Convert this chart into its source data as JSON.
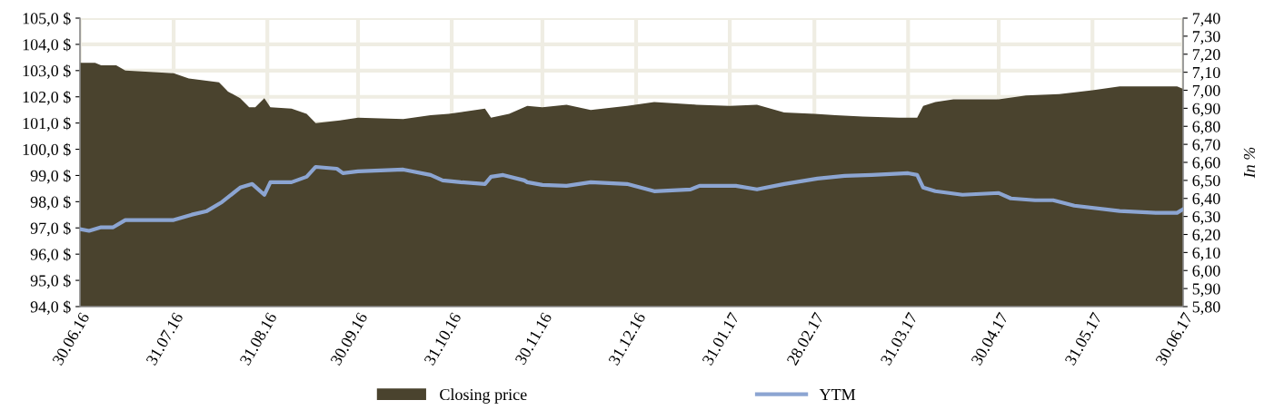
{
  "chart_data": {
    "type": "area",
    "y2label": "In %",
    "legend": "bottom",
    "grid": true,
    "xlim": [
      "2016-06-30",
      "2017-06-30"
    ],
    "xticks": [
      {
        "value": "2016-06-30",
        "label": "30.06.16"
      },
      {
        "value": "2016-07-31",
        "label": "31.07.16"
      },
      {
        "value": "2016-08-31",
        "label": "31.08.16"
      },
      {
        "value": "2016-09-30",
        "label": "30.09.16"
      },
      {
        "value": "2016-10-31",
        "label": "31.10.16"
      },
      {
        "value": "2016-11-30",
        "label": "30.11.16"
      },
      {
        "value": "2016-12-31",
        "label": "31.12.16"
      },
      {
        "value": "2017-01-31",
        "label": "31.01.17"
      },
      {
        "value": "2017-02-28",
        "label": "28.02.17"
      },
      {
        "value": "2017-03-31",
        "label": "31.03.17"
      },
      {
        "value": "2017-04-30",
        "label": "30.04.17"
      },
      {
        "value": "2017-05-31",
        "label": "31.05.17"
      },
      {
        "value": "2017-06-30",
        "label": "30.06.17"
      }
    ],
    "ylim": [
      94,
      105
    ],
    "yticks": [
      {
        "value": 94,
        "label": "94,0 $"
      },
      {
        "value": 95,
        "label": "95,0 $"
      },
      {
        "value": 96,
        "label": "96,0 $"
      },
      {
        "value": 97,
        "label": "97,0 $"
      },
      {
        "value": 98,
        "label": "98,0 $"
      },
      {
        "value": 99,
        "label": "99,0 $"
      },
      {
        "value": 100,
        "label": "100,0 $"
      },
      {
        "value": 101,
        "label": "101,0 $"
      },
      {
        "value": 102,
        "label": "102,0 $"
      },
      {
        "value": 103,
        "label": "103,0 $"
      },
      {
        "value": 104,
        "label": "104,0 $"
      },
      {
        "value": 105,
        "label": "105,0 $"
      }
    ],
    "y2lim": [
      5.8,
      7.4
    ],
    "y2ticks": [
      {
        "value": 5.8,
        "label": "5,80"
      },
      {
        "value": 5.9,
        "label": "5,90"
      },
      {
        "value": 6.0,
        "label": "6,00"
      },
      {
        "value": 6.1,
        "label": "6,10"
      },
      {
        "value": 6.2,
        "label": "6,20"
      },
      {
        "value": 6.3,
        "label": "6,30"
      },
      {
        "value": 6.4,
        "label": "6,40"
      },
      {
        "value": 6.5,
        "label": "6,50"
      },
      {
        "value": 6.6,
        "label": "6,60"
      },
      {
        "value": 6.7,
        "label": "6,70"
      },
      {
        "value": 6.8,
        "label": "6,80"
      },
      {
        "value": 6.9,
        "label": "6,90"
      },
      {
        "value": 7.0,
        "label": "7,00"
      },
      {
        "value": 7.1,
        "label": "7,10"
      },
      {
        "value": 7.2,
        "label": "7,20"
      },
      {
        "value": 7.3,
        "label": "7,30"
      },
      {
        "value": 7.4,
        "label": "7,40"
      }
    ],
    "series": [
      {
        "name": "Closing price",
        "color": "#4a432e",
        "x": [
          "2016-06-30",
          "2016-07-05",
          "2016-07-07",
          "2016-07-12",
          "2016-07-15",
          "2016-07-23",
          "2016-07-31",
          "2016-08-05",
          "2016-08-15",
          "2016-08-18",
          "2016-08-22",
          "2016-08-25",
          "2016-08-27",
          "2016-08-30",
          "2016-09-01",
          "2016-09-08",
          "2016-09-13",
          "2016-09-16",
          "2016-09-24",
          "2016-09-30",
          "2016-10-15",
          "2016-10-24",
          "2016-10-30",
          "2016-11-11",
          "2016-11-13",
          "2016-11-19",
          "2016-11-25",
          "2016-11-30",
          "2016-12-08",
          "2016-12-16",
          "2016-12-28",
          "2017-01-06",
          "2017-01-20",
          "2017-01-31",
          "2017-02-09",
          "2017-02-18",
          "2017-02-28",
          "2017-03-07",
          "2017-03-16",
          "2017-03-28",
          "2017-04-03",
          "2017-04-05",
          "2017-04-09",
          "2017-04-15",
          "2017-04-30",
          "2017-05-09",
          "2017-05-20",
          "2017-05-31",
          "2017-06-09",
          "2017-06-21",
          "2017-06-28",
          "2017-06-30"
        ],
        "values": [
          103.3,
          103.3,
          103.2,
          103.2,
          103.0,
          102.95,
          102.9,
          102.7,
          102.55,
          102.2,
          101.95,
          101.6,
          101.6,
          101.95,
          101.6,
          101.55,
          101.35,
          101.0,
          101.1,
          101.2,
          101.15,
          101.3,
          101.35,
          101.55,
          101.2,
          101.35,
          101.65,
          101.6,
          101.7,
          101.5,
          101.65,
          101.8,
          101.7,
          101.65,
          101.7,
          101.4,
          101.35,
          101.3,
          101.25,
          101.2,
          101.2,
          101.65,
          101.8,
          101.9,
          101.9,
          102.05,
          102.1,
          102.25,
          102.4,
          102.4,
          102.4,
          102.3
        ]
      },
      {
        "name": "YTM",
        "type": "line",
        "axis": "y2",
        "color": "#8ca5d2",
        "x": [
          "2016-06-30",
          "2016-07-03",
          "2016-07-07",
          "2016-07-11",
          "2016-07-15",
          "2016-07-22",
          "2016-07-31",
          "2016-08-06",
          "2016-08-11",
          "2016-08-16",
          "2016-08-22",
          "2016-08-26",
          "2016-08-30",
          "2016-09-01",
          "2016-09-08",
          "2016-09-13",
          "2016-09-16",
          "2016-09-23",
          "2016-09-25",
          "2016-09-30",
          "2016-10-15",
          "2016-10-24",
          "2016-10-28",
          "2016-11-03",
          "2016-11-11",
          "2016-11-13",
          "2016-11-17",
          "2016-11-24",
          "2016-11-25",
          "2016-11-30",
          "2016-12-08",
          "2016-12-16",
          "2016-12-28",
          "2017-01-06",
          "2017-01-18",
          "2017-01-21",
          "2017-02-02",
          "2017-02-09",
          "2017-02-18",
          "2017-03-01",
          "2017-03-10",
          "2017-03-19",
          "2017-03-31",
          "2017-04-03",
          "2017-04-05",
          "2017-04-09",
          "2017-04-18",
          "2017-04-30",
          "2017-05-04",
          "2017-05-12",
          "2017-05-18",
          "2017-05-25",
          "2017-06-09",
          "2017-06-21",
          "2017-06-28",
          "2017-06-30"
        ],
        "values": [
          6.23,
          6.22,
          6.24,
          6.24,
          6.28,
          6.28,
          6.28,
          6.31,
          6.33,
          6.38,
          6.46,
          6.48,
          6.42,
          6.49,
          6.49,
          6.52,
          6.575,
          6.565,
          6.54,
          6.55,
          6.56,
          6.53,
          6.5,
          6.49,
          6.48,
          6.52,
          6.53,
          6.5,
          6.49,
          6.475,
          6.47,
          6.49,
          6.48,
          6.44,
          6.45,
          6.47,
          6.47,
          6.45,
          6.48,
          6.51,
          6.525,
          6.53,
          6.54,
          6.53,
          6.46,
          6.44,
          6.42,
          6.43,
          6.4,
          6.39,
          6.39,
          6.36,
          6.33,
          6.32,
          6.32,
          6.34
        ]
      }
    ]
  }
}
